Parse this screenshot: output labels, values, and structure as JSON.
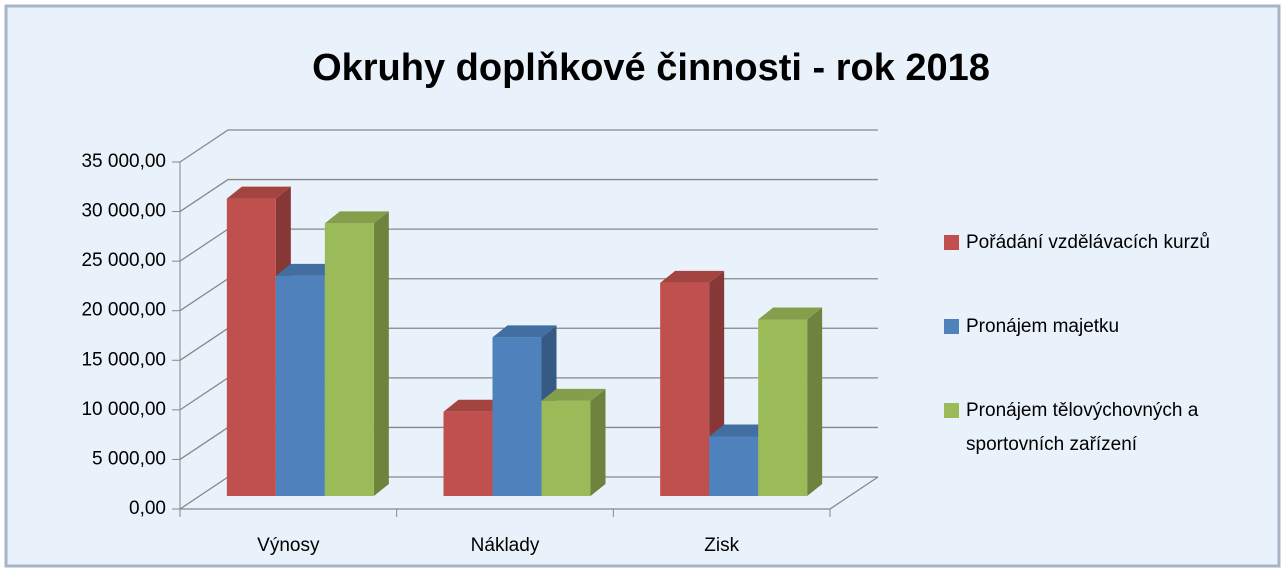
{
  "chart_data": {
    "type": "bar3d",
    "title": "Okruhy doplňkové činnosti - rok 2018",
    "categories": [
      "Výnosy",
      "Náklady",
      "Zisk"
    ],
    "series": [
      {
        "name": "Pořádání vzdělávacích kurzů",
        "color": "#c0504d",
        "values": [
          30000,
          8500,
          21500
        ]
      },
      {
        "name": "Pronájem majetku",
        "color": "#4f81bd",
        "values": [
          22200,
          16000,
          6000
        ]
      },
      {
        "name": "Pronájem tělovýchovných a sportovních zařízení",
        "color": "#9bbb59",
        "values": [
          27500,
          9600,
          17800
        ]
      }
    ],
    "ylim": [
      0,
      35000
    ],
    "yticks": [
      {
        "value": 0,
        "label": "0,00"
      },
      {
        "value": 5000,
        "label": "5 000,00"
      },
      {
        "value": 10000,
        "label": "10 000,00"
      },
      {
        "value": 15000,
        "label": "15 000,00"
      },
      {
        "value": 20000,
        "label": "20 000,00"
      },
      {
        "value": 25000,
        "label": "25 000,00"
      },
      {
        "value": 30000,
        "label": "30 000,00"
      },
      {
        "value": 35000,
        "label": "35 000,00"
      }
    ],
    "grid": true,
    "legend": "right"
  }
}
